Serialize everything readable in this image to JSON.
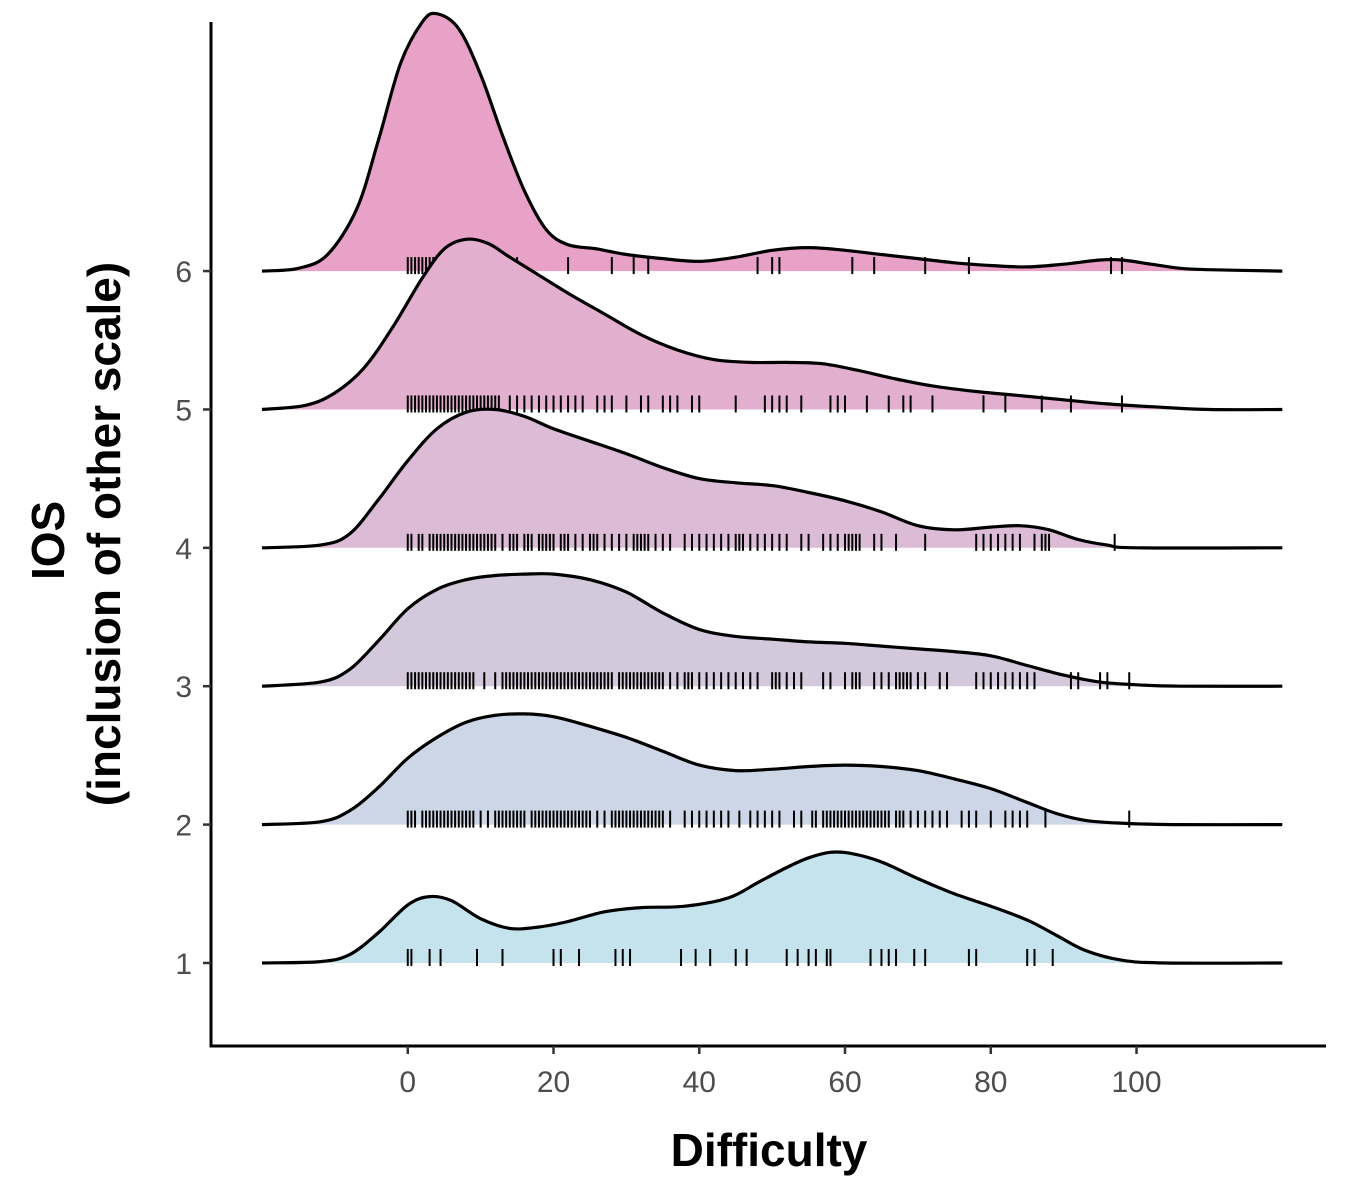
{
  "chart_data": {
    "type": "ridgeline",
    "xlabel": "Difficulty",
    "ylabel_lines": [
      "IOS",
      "(inclusion of other scale)"
    ],
    "x_ticks": [
      0,
      20,
      40,
      60,
      80,
      100
    ],
    "y_ticks": [
      1,
      2,
      3,
      4,
      5,
      6
    ],
    "xlim": [
      -27,
      126
    ],
    "ylim": [
      0.4,
      7.8
    ],
    "density_range": [
      -20,
      120
    ],
    "grid": false,
    "legend": "none",
    "series": [
      {
        "level": 1,
        "fill": "#c5e3ed",
        "density": [
          [
            -20,
            0
          ],
          [
            -12,
            0.01
          ],
          [
            -8,
            0.06
          ],
          [
            -4,
            0.22
          ],
          [
            0,
            0.42
          ],
          [
            3,
            0.48
          ],
          [
            6,
            0.45
          ],
          [
            10,
            0.32
          ],
          [
            14,
            0.25
          ],
          [
            18,
            0.26
          ],
          [
            22,
            0.3
          ],
          [
            27,
            0.37
          ],
          [
            32,
            0.4
          ],
          [
            38,
            0.41
          ],
          [
            44,
            0.47
          ],
          [
            48,
            0.58
          ],
          [
            52,
            0.69
          ],
          [
            55,
            0.76
          ],
          [
            58,
            0.8
          ],
          [
            61,
            0.79
          ],
          [
            65,
            0.73
          ],
          [
            70,
            0.61
          ],
          [
            75,
            0.5
          ],
          [
            80,
            0.41
          ],
          [
            85,
            0.31
          ],
          [
            89,
            0.2
          ],
          [
            93,
            0.09
          ],
          [
            98,
            0.02
          ],
          [
            104,
            0
          ],
          [
            120,
            0
          ]
        ],
        "rug": [
          0,
          0.5,
          3,
          4.5,
          9.5,
          13,
          20,
          21,
          23.5,
          28.5,
          29.5,
          30.5,
          37.5,
          39.5,
          41.5,
          45,
          46.5,
          52,
          53.5,
          55,
          56,
          57.5,
          58,
          63.5,
          65,
          66,
          67,
          69.5,
          71,
          77,
          78,
          85,
          86,
          88.5
        ]
      },
      {
        "level": 2,
        "fill": "#cdd6e6",
        "density": [
          [
            -20,
            0
          ],
          [
            -12,
            0.02
          ],
          [
            -8,
            0.1
          ],
          [
            -4,
            0.27
          ],
          [
            0,
            0.48
          ],
          [
            4,
            0.63
          ],
          [
            8,
            0.74
          ],
          [
            12,
            0.79
          ],
          [
            16,
            0.8
          ],
          [
            20,
            0.78
          ],
          [
            25,
            0.71
          ],
          [
            30,
            0.63
          ],
          [
            35,
            0.53
          ],
          [
            40,
            0.43
          ],
          [
            45,
            0.39
          ],
          [
            50,
            0.4
          ],
          [
            55,
            0.42
          ],
          [
            60,
            0.43
          ],
          [
            65,
            0.42
          ],
          [
            70,
            0.39
          ],
          [
            75,
            0.33
          ],
          [
            80,
            0.26
          ],
          [
            85,
            0.16
          ],
          [
            89,
            0.08
          ],
          [
            93,
            0.03
          ],
          [
            98,
            0.01
          ],
          [
            105,
            0
          ],
          [
            120,
            0
          ]
        ],
        "rug": [
          0,
          0.5,
          1,
          2,
          2.5,
          3,
          3.5,
          4,
          4.5,
          5,
          5.5,
          6,
          6.5,
          7,
          7.5,
          8,
          8.5,
          9,
          10,
          11,
          12,
          12.5,
          13,
          13.5,
          14,
          14.5,
          15,
          15.5,
          16,
          17,
          17.5,
          18,
          18.5,
          19,
          19.5,
          20,
          20.5,
          21,
          21.5,
          22,
          22.5,
          23,
          23.5,
          24,
          24.5,
          25,
          26,
          27,
          28,
          28.5,
          29,
          29.5,
          30,
          30.5,
          31,
          31.5,
          32,
          32.5,
          33,
          33.5,
          34,
          34.5,
          35,
          36,
          38,
          39,
          40,
          41,
          42,
          43,
          44,
          45.5,
          47,
          48,
          49,
          50,
          51,
          53,
          54,
          55.5,
          56,
          57,
          57.5,
          58,
          58.5,
          59,
          59.5,
          60,
          60.5,
          61,
          61.5,
          62,
          62.5,
          63,
          63.5,
          64,
          64.5,
          65,
          65.5,
          66,
          67,
          67.5,
          68,
          69,
          70,
          71,
          72,
          73,
          74,
          76,
          77,
          78,
          80,
          82,
          83,
          84,
          85,
          87.5,
          99
        ]
      },
      {
        "level": 3,
        "fill": "#d4c9dc",
        "density": [
          [
            -20,
            0
          ],
          [
            -12,
            0.03
          ],
          [
            -8,
            0.12
          ],
          [
            -4,
            0.33
          ],
          [
            0,
            0.56
          ],
          [
            4,
            0.7
          ],
          [
            8,
            0.77
          ],
          [
            12,
            0.8
          ],
          [
            16,
            0.81
          ],
          [
            20,
            0.81
          ],
          [
            25,
            0.77
          ],
          [
            30,
            0.68
          ],
          [
            35,
            0.53
          ],
          [
            40,
            0.41
          ],
          [
            45,
            0.36
          ],
          [
            50,
            0.34
          ],
          [
            55,
            0.32
          ],
          [
            60,
            0.31
          ],
          [
            65,
            0.29
          ],
          [
            70,
            0.27
          ],
          [
            75,
            0.25
          ],
          [
            80,
            0.22
          ],
          [
            85,
            0.15
          ],
          [
            90,
            0.08
          ],
          [
            95,
            0.03
          ],
          [
            100,
            0.01
          ],
          [
            106,
            0
          ],
          [
            120,
            0
          ]
        ],
        "rug": [
          0,
          0.5,
          1,
          1.5,
          2,
          2.5,
          3,
          3.5,
          4,
          4.5,
          5,
          5.5,
          6,
          6.5,
          7,
          7.5,
          8,
          8.5,
          9,
          10.5,
          12,
          13,
          13.5,
          14,
          14.5,
          15,
          15.5,
          16,
          16.5,
          17,
          17.5,
          18,
          18.5,
          19,
          19.5,
          20,
          20.5,
          21,
          21.5,
          22,
          22.5,
          23,
          23.5,
          24,
          24.5,
          25,
          25.5,
          26,
          26.5,
          27,
          27.5,
          28,
          29,
          29.5,
          30,
          30.5,
          31,
          31.5,
          32,
          32.5,
          33,
          33.5,
          34,
          34.5,
          35,
          36,
          37,
          38,
          38.5,
          39,
          40,
          41,
          42,
          43,
          44,
          45,
          46,
          47,
          48,
          50,
          50.5,
          51,
          52,
          53,
          54,
          57,
          58,
          60,
          61,
          61.5,
          62,
          64,
          65,
          66,
          67,
          67.5,
          68,
          68.5,
          69,
          70,
          71,
          73,
          74,
          78,
          79,
          80,
          81,
          82,
          83,
          84,
          85,
          86,
          91,
          92,
          95,
          96,
          99
        ]
      },
      {
        "level": 4,
        "fill": "#dbbbd6",
        "density": [
          [
            -20,
            0
          ],
          [
            -12,
            0.02
          ],
          [
            -8,
            0.1
          ],
          [
            -4,
            0.35
          ],
          [
            0,
            0.63
          ],
          [
            4,
            0.86
          ],
          [
            8,
            0.98
          ],
          [
            12,
            1.0
          ],
          [
            16,
            0.95
          ],
          [
            20,
            0.86
          ],
          [
            25,
            0.77
          ],
          [
            30,
            0.68
          ],
          [
            35,
            0.58
          ],
          [
            40,
            0.5
          ],
          [
            45,
            0.47
          ],
          [
            50,
            0.45
          ],
          [
            55,
            0.4
          ],
          [
            60,
            0.34
          ],
          [
            65,
            0.26
          ],
          [
            70,
            0.16
          ],
          [
            75,
            0.13
          ],
          [
            80,
            0.15
          ],
          [
            84,
            0.16
          ],
          [
            88,
            0.13
          ],
          [
            92,
            0.06
          ],
          [
            96,
            0.02
          ],
          [
            100,
            0
          ],
          [
            120,
            0
          ]
        ],
        "rug": [
          0,
          0.5,
          1.5,
          2,
          3,
          3.5,
          4,
          4.5,
          5,
          5.5,
          6,
          6.5,
          7,
          7.5,
          8,
          8.5,
          9,
          9.5,
          10,
          10.5,
          11,
          11.5,
          12,
          13,
          14,
          14.5,
          15,
          16,
          16.5,
          17,
          18,
          18.5,
          19,
          19.5,
          20,
          21,
          21.5,
          22,
          23,
          24,
          25,
          25.5,
          26,
          27,
          28,
          29,
          30,
          31,
          31.5,
          32,
          32.5,
          33,
          34,
          35,
          36,
          38,
          39,
          40,
          41,
          42,
          43,
          44,
          45,
          45.5,
          46,
          47,
          48,
          49,
          50,
          51,
          52,
          54,
          55,
          57,
          58,
          59,
          60,
          60.5,
          61,
          61.5,
          62,
          64,
          65,
          67,
          71,
          78,
          79,
          80,
          81,
          82,
          83,
          84,
          86,
          87,
          87.5,
          88,
          97
        ]
      },
      {
        "level": 5,
        "fill": "#e2afce",
        "density": [
          [
            -20,
            0
          ],
          [
            -14,
            0.03
          ],
          [
            -10,
            0.12
          ],
          [
            -6,
            0.3
          ],
          [
            -2,
            0.6
          ],
          [
            2,
            0.95
          ],
          [
            5,
            1.16
          ],
          [
            8,
            1.23
          ],
          [
            11,
            1.2
          ],
          [
            14,
            1.1
          ],
          [
            18,
            0.97
          ],
          [
            22,
            0.84
          ],
          [
            27,
            0.69
          ],
          [
            32,
            0.54
          ],
          [
            37,
            0.43
          ],
          [
            42,
            0.36
          ],
          [
            47,
            0.34
          ],
          [
            52,
            0.34
          ],
          [
            57,
            0.33
          ],
          [
            62,
            0.28
          ],
          [
            67,
            0.22
          ],
          [
            72,
            0.17
          ],
          [
            78,
            0.13
          ],
          [
            84,
            0.1
          ],
          [
            90,
            0.07
          ],
          [
            96,
            0.04
          ],
          [
            102,
            0.02
          ],
          [
            110,
            0
          ],
          [
            120,
            0
          ]
        ],
        "rug": [
          0,
          0.5,
          1,
          1.5,
          2,
          2.5,
          3,
          3.5,
          4,
          4.5,
          5,
          5.5,
          6,
          6.5,
          7,
          7.5,
          8,
          8.5,
          9,
          9.5,
          10,
          10.5,
          11,
          11.5,
          12,
          12.5,
          14,
          15,
          16,
          17,
          18,
          19,
          20,
          21,
          22,
          23,
          24,
          26,
          27,
          28,
          30,
          32,
          33,
          35,
          36,
          37,
          39,
          40,
          45,
          49,
          50,
          51,
          52,
          54,
          58,
          59,
          60,
          63,
          66,
          68,
          69,
          72,
          79,
          82,
          87,
          91,
          98
        ]
      },
      {
        "level": 6,
        "fill": "#e8a2c7",
        "density": [
          [
            -20,
            0
          ],
          [
            -15,
            0.02
          ],
          [
            -11,
            0.12
          ],
          [
            -7,
            0.45
          ],
          [
            -4,
            0.95
          ],
          [
            -1,
            1.5
          ],
          [
            2,
            1.8
          ],
          [
            4,
            1.86
          ],
          [
            7,
            1.75
          ],
          [
            10,
            1.42
          ],
          [
            13,
            0.98
          ],
          [
            16,
            0.58
          ],
          [
            19,
            0.3
          ],
          [
            22,
            0.19
          ],
          [
            26,
            0.16
          ],
          [
            30,
            0.12
          ],
          [
            35,
            0.09
          ],
          [
            40,
            0.07
          ],
          [
            45,
            0.1
          ],
          [
            50,
            0.15
          ],
          [
            55,
            0.17
          ],
          [
            60,
            0.15
          ],
          [
            65,
            0.12
          ],
          [
            70,
            0.09
          ],
          [
            75,
            0.06
          ],
          [
            80,
            0.04
          ],
          [
            85,
            0.03
          ],
          [
            90,
            0.05
          ],
          [
            95,
            0.08
          ],
          [
            98,
            0.08
          ],
          [
            102,
            0.05
          ],
          [
            106,
            0.02
          ],
          [
            110,
            0.01
          ],
          [
            120,
            0
          ]
        ],
        "rug": [
          0,
          0.5,
          1,
          1.5,
          2,
          2.5,
          3,
          3.5,
          4,
          4.5,
          5,
          5.5,
          6,
          6.5,
          7,
          8,
          9,
          10,
          11,
          13,
          15,
          22,
          28,
          31,
          33,
          48,
          50,
          51,
          61,
          64,
          71,
          77,
          96.5,
          98
        ]
      }
    ]
  }
}
